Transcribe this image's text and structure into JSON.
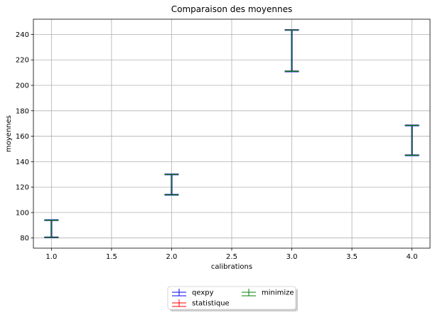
{
  "chart_data": {
    "type": "errorbar",
    "title": "Comparaison des moyennes",
    "xlabel": "calibrations",
    "ylabel": "moyennes",
    "xlim": [
      0.85,
      4.15
    ],
    "ylim": [
      72,
      252
    ],
    "xticks": [
      1.0,
      1.5,
      2.0,
      2.5,
      3.0,
      3.5,
      4.0
    ],
    "xtick_labels": [
      "1.0",
      "1.5",
      "2.0",
      "2.5",
      "3.0",
      "3.5",
      "4.0"
    ],
    "yticks": [
      80,
      100,
      120,
      140,
      160,
      180,
      200,
      220,
      240
    ],
    "ytick_labels": [
      "80",
      "100",
      "120",
      "140",
      "160",
      "180",
      "200",
      "220",
      "240"
    ],
    "grid": true,
    "legend_position": "bottom-center",
    "series": [
      {
        "name": "qexpy",
        "color": "#0000ff",
        "points": [
          {
            "x": 1.0,
            "low": 80.5,
            "high": 94.0
          },
          {
            "x": 2.0,
            "low": 114.0,
            "high": 130.0
          },
          {
            "x": 3.0,
            "low": 211.0,
            "high": 243.5
          },
          {
            "x": 4.0,
            "low": 145.0,
            "high": 168.5
          }
        ]
      },
      {
        "name": "statistique",
        "color": "#ff0000",
        "points": [
          {
            "x": 1.0,
            "low": 80.5,
            "high": 94.0
          },
          {
            "x": 2.0,
            "low": 114.0,
            "high": 130.0
          },
          {
            "x": 3.0,
            "low": 211.0,
            "high": 243.5
          },
          {
            "x": 4.0,
            "low": 145.0,
            "high": 168.5
          }
        ]
      },
      {
        "name": "minimize",
        "color": "#008000",
        "points": [
          {
            "x": 1.0,
            "low": 80.5,
            "high": 94.0
          },
          {
            "x": 2.0,
            "low": 114.0,
            "high": 130.0
          },
          {
            "x": 3.0,
            "low": 211.0,
            "high": 243.5
          },
          {
            "x": 4.0,
            "low": 145.0,
            "high": 168.5
          }
        ]
      }
    ]
  }
}
